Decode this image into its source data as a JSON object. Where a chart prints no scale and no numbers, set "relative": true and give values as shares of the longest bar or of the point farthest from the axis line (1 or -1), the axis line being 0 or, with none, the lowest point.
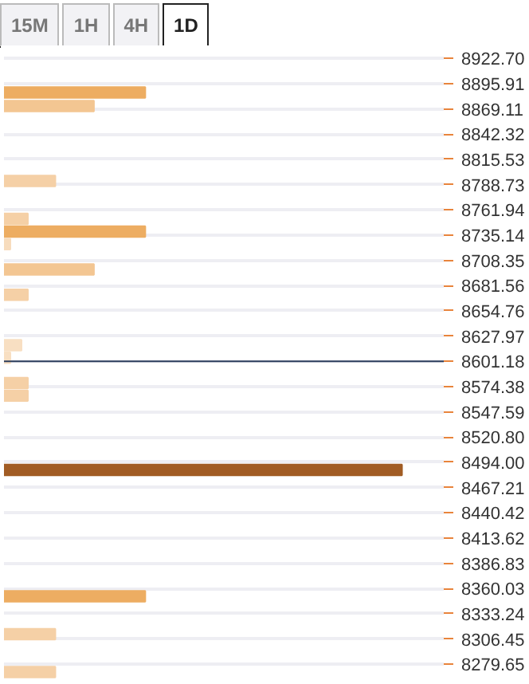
{
  "chart_data": {
    "type": "bar",
    "orientation": "horizontal",
    "relative": true,
    "annotations": [
      "15M",
      "1H",
      "4H",
      "1D"
    ],
    "x": [
      8886.4,
      8872.1,
      8792.5,
      8752.3,
      8738.9,
      8725.5,
      8698.7,
      8671.9,
      8618.3,
      8604.9,
      8578.1,
      8564.7,
      8485.9,
      8351.9,
      8311.7,
      8271.5
    ],
    "values": [
      0.355,
      0.226,
      0.129,
      0.06,
      0.355,
      0.016,
      0.226,
      0.06,
      0.044,
      0.016,
      0.06,
      0.06,
      1,
      0.355,
      0.129,
      0.129
    ],
    "colors": [
      "#edad62",
      "#f3c692",
      "#f5d0a6",
      "#f5d0a6",
      "#edad62",
      "#f7dcbd",
      "#f3c692",
      "#f5d0a6",
      "#f8dfc2",
      "#f8dfc2",
      "#f5d0a6",
      "#f5d0a6",
      "#a15c24",
      "#edad62",
      "#f5d0a6",
      "#f5d0a6"
    ],
    "ylim": [
      8263,
      8933
    ],
    "yticks": [
      {
        "value": 8922.7,
        "label": "8922.70"
      },
      8895.91,
      8869.11,
      8842.32,
      8815.53,
      8788.73,
      8761.94,
      8735.14,
      8708.35,
      8681.56,
      8654.76,
      8627.97,
      8601.18,
      8574.38,
      8547.59,
      {
        "value": 8520.8,
        "label": "8520.80"
      },
      {
        "value": 8494,
        "label": "8494.00"
      },
      8467.21,
      8440.42,
      8413.62,
      8386.83,
      8360.03,
      8333.24,
      8306.45,
      8279.65
    ],
    "ref_lines": [
      {
        "axis": "y",
        "value": 8601.18,
        "color": "#2c3e5c"
      }
    ],
    "grid": "y"
  }
}
